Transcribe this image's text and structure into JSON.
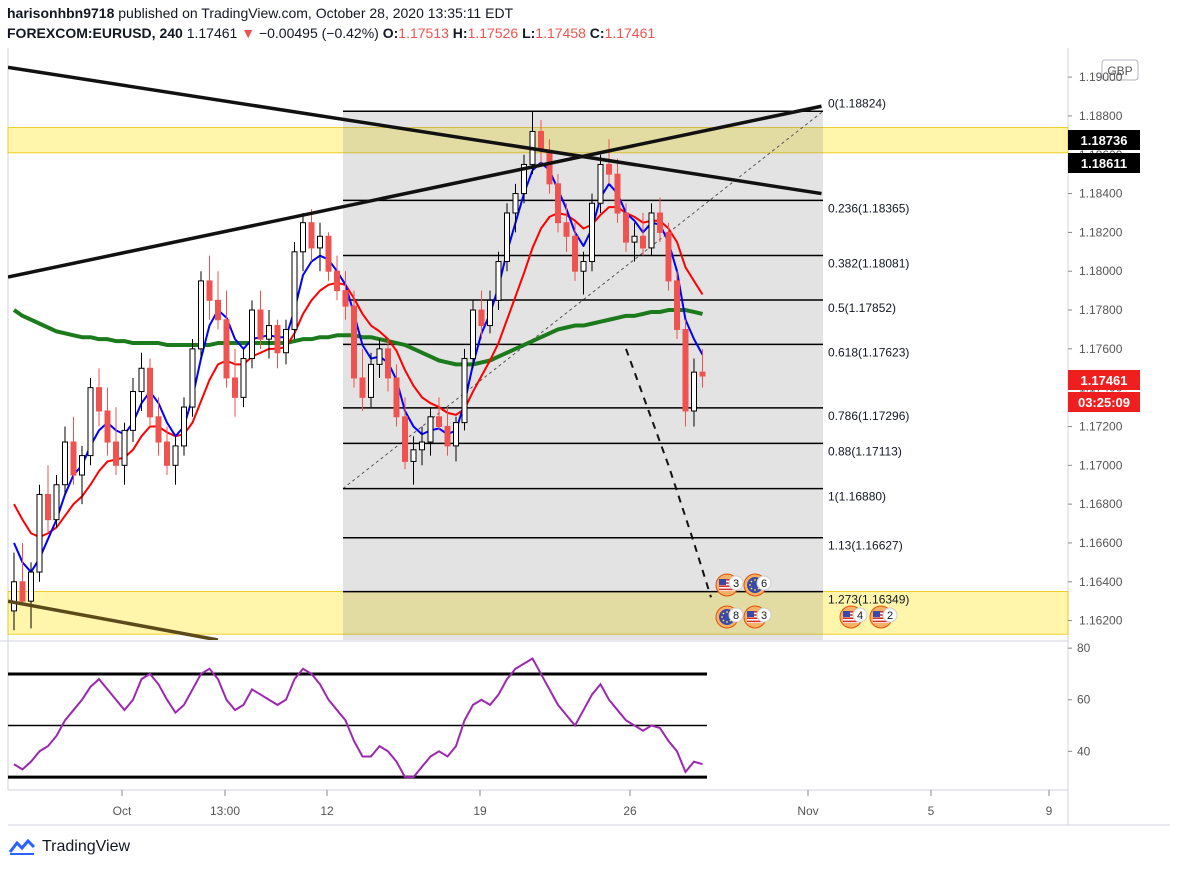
{
  "header": {
    "user": "harisonhbn9718",
    "published": "published on TradingView.com, October 28, 2020 13:35:11 EDT",
    "symbol": "FOREXCOM:EURUSD, 240",
    "last": "1.17461",
    "change_arrow": "▼",
    "change": "−0.00495 (−0.42%)",
    "o_label": "O:",
    "o_value": "1.17513",
    "h_label": "H:",
    "h_value": "1.17526",
    "l_label": "L:",
    "l_value": "1.17458",
    "c_label": "C:",
    "c_value": "1.17461"
  },
  "footer": {
    "brand": "TradingView",
    "logo_icon": "tradingview-logo-icon"
  },
  "colors": {
    "up": "#000000",
    "down": "#ef5350",
    "ema_fast": "#0000ff",
    "ema_mid": "#ff0000",
    "ema_slow": "#1b7a1b",
    "rsi": "#9c27b0",
    "zone": "#fff59d"
  },
  "chart_data": [
    {
      "type": "candlestick",
      "symbol": "FOREXCOM:EURUSD",
      "timeframe": "240",
      "currency": "GBP",
      "ylim": [
        1.161,
        1.1915
      ],
      "price_ticks": [
        "1.19000",
        "1.18800",
        "1.18600",
        "1.18400",
        "1.18200",
        "1.18000",
        "1.17800",
        "1.17600",
        "1.17400",
        "1.17200",
        "1.17000",
        "1.16800",
        "1.16600",
        "1.16400",
        "1.16200"
      ],
      "x_ticks": [
        "Oct",
        "13:00",
        "12",
        "19",
        "26",
        "Nov",
        "5",
        "9"
      ],
      "price_tags": [
        {
          "text": "1.18736",
          "value": 1.18736
        },
        {
          "text": "1.18611",
          "value": 1.18611
        },
        {
          "text": "1.17461",
          "value": 1.17461
        },
        {
          "text": "03:25:09",
          "value": 1.17296
        }
      ],
      "fib_levels": [
        {
          "label": "0(1.18824)",
          "value": 1.18824
        },
        {
          "label": "0.236(1.18365)",
          "value": 1.18365
        },
        {
          "label": "0.382(1.18081)",
          "value": 1.18081
        },
        {
          "label": "0.5(1.17852)",
          "value": 1.17852
        },
        {
          "label": "0.618(1.17623)",
          "value": 1.17623
        },
        {
          "label": "0.786(1.17296)",
          "value": 1.17296
        },
        {
          "label": "0.88(1.17113)",
          "value": 1.17113
        },
        {
          "label": "1(1.16880)",
          "value": 1.1688
        },
        {
          "label": "1.13(1.16627)",
          "value": 1.16627
        },
        {
          "label": "1.273(1.16349)",
          "value": 1.16349
        }
      ],
      "zones": [
        {
          "from": 1.1861,
          "to": 1.1874
        },
        {
          "from": 1.1613,
          "to": 1.1635
        }
      ],
      "events": [
        {
          "icon": "us-flag-icon",
          "count": "3"
        },
        {
          "icon": "eu-flag-icon",
          "count": "6"
        },
        {
          "icon": "eu-flag-icon",
          "count": "8"
        },
        {
          "icon": "us-flag-icon",
          "count": "3"
        },
        {
          "icon": "us-flag-icon",
          "count": "4"
        },
        {
          "icon": "us-flag-icon",
          "count": "2"
        }
      ],
      "ohlc": [
        [
          1.1625,
          1.1655,
          1.1615,
          1.164
        ],
        [
          1.164,
          1.166,
          1.1628,
          1.163
        ],
        [
          1.163,
          1.165,
          1.1616,
          1.1645
        ],
        [
          1.1645,
          1.169,
          1.164,
          1.1685
        ],
        [
          1.1685,
          1.17,
          1.1665,
          1.1672
        ],
        [
          1.1672,
          1.1695,
          1.1668,
          1.169
        ],
        [
          1.169,
          1.172,
          1.1685,
          1.1712
        ],
        [
          1.1712,
          1.1725,
          1.169,
          1.1695
        ],
        [
          1.1695,
          1.171,
          1.168,
          1.1705
        ],
        [
          1.1705,
          1.1745,
          1.17,
          1.174
        ],
        [
          1.174,
          1.175,
          1.172,
          1.1728
        ],
        [
          1.1728,
          1.174,
          1.1705,
          1.1712
        ],
        [
          1.1712,
          1.173,
          1.1695,
          1.17
        ],
        [
          1.17,
          1.1722,
          1.169,
          1.1718
        ],
        [
          1.1718,
          1.1745,
          1.1712,
          1.1738
        ],
        [
          1.1738,
          1.1758,
          1.1728,
          1.175
        ],
        [
          1.175,
          1.1755,
          1.172,
          1.1725
        ],
        [
          1.1725,
          1.1735,
          1.1705,
          1.1712
        ],
        [
          1.1712,
          1.172,
          1.1695,
          1.17
        ],
        [
          1.17,
          1.1715,
          1.169,
          1.171
        ],
        [
          1.171,
          1.1735,
          1.1705,
          1.173
        ],
        [
          1.173,
          1.1765,
          1.1725,
          1.176
        ],
        [
          1.176,
          1.18,
          1.1755,
          1.1795
        ],
        [
          1.1795,
          1.1808,
          1.1775,
          1.1785
        ],
        [
          1.1785,
          1.18,
          1.177,
          1.1775
        ],
        [
          1.1775,
          1.179,
          1.174,
          1.1745
        ],
        [
          1.1745,
          1.176,
          1.1725,
          1.1735
        ],
        [
          1.1735,
          1.176,
          1.173,
          1.1755
        ],
        [
          1.1755,
          1.1785,
          1.175,
          1.178
        ],
        [
          1.178,
          1.179,
          1.176,
          1.1765
        ],
        [
          1.1765,
          1.178,
          1.1755,
          1.1772
        ],
        [
          1.1772,
          1.1775,
          1.175,
          1.1758
        ],
        [
          1.1758,
          1.1775,
          1.1752,
          1.177
        ],
        [
          1.177,
          1.1815,
          1.1765,
          1.181
        ],
        [
          1.181,
          1.183,
          1.18,
          1.1825
        ],
        [
          1.1825,
          1.1832,
          1.1805,
          1.1812
        ],
        [
          1.1812,
          1.1825,
          1.18,
          1.1818
        ],
        [
          1.1818,
          1.182,
          1.1795,
          1.18
        ],
        [
          1.18,
          1.1808,
          1.1785,
          1.179
        ],
        [
          1.179,
          1.18,
          1.1775,
          1.1782
        ],
        [
          1.1782,
          1.179,
          1.174,
          1.1745
        ],
        [
          1.1745,
          1.176,
          1.1728,
          1.1735
        ],
        [
          1.1735,
          1.1758,
          1.173,
          1.1752
        ],
        [
          1.1752,
          1.1765,
          1.1745,
          1.176
        ],
        [
          1.176,
          1.1765,
          1.1738,
          1.1745
        ],
        [
          1.1745,
          1.1752,
          1.172,
          1.1725
        ],
        [
          1.1725,
          1.1735,
          1.1698,
          1.1702
        ],
        [
          1.1702,
          1.1715,
          1.169,
          1.1708
        ],
        [
          1.1708,
          1.172,
          1.17,
          1.1712
        ],
        [
          1.1712,
          1.173,
          1.1705,
          1.1725
        ],
        [
          1.1725,
          1.1735,
          1.1718,
          1.172
        ],
        [
          1.172,
          1.173,
          1.1705,
          1.171
        ],
        [
          1.171,
          1.1725,
          1.1702,
          1.1722
        ],
        [
          1.1722,
          1.176,
          1.1718,
          1.1755
        ],
        [
          1.1755,
          1.1785,
          1.175,
          1.178
        ],
        [
          1.178,
          1.179,
          1.1765,
          1.1772
        ],
        [
          1.1772,
          1.179,
          1.1768,
          1.1785
        ],
        [
          1.1785,
          1.181,
          1.178,
          1.1805
        ],
        [
          1.1805,
          1.1835,
          1.18,
          1.183
        ],
        [
          1.183,
          1.1845,
          1.182,
          1.184
        ],
        [
          1.184,
          1.186,
          1.1835,
          1.1855
        ],
        [
          1.1855,
          1.1882,
          1.185,
          1.1872
        ],
        [
          1.1872,
          1.1878,
          1.1855,
          1.1862
        ],
        [
          1.1862,
          1.1868,
          1.184,
          1.1845
        ],
        [
          1.1845,
          1.185,
          1.182,
          1.1825
        ],
        [
          1.1825,
          1.1835,
          1.181,
          1.1818
        ],
        [
          1.1818,
          1.1825,
          1.1795,
          1.18
        ],
        [
          1.18,
          1.181,
          1.1788,
          1.1805
        ],
        [
          1.1805,
          1.184,
          1.18,
          1.1835
        ],
        [
          1.1835,
          1.186,
          1.183,
          1.1855
        ],
        [
          1.1855,
          1.1868,
          1.1845,
          1.185
        ],
        [
          1.185,
          1.1858,
          1.1825,
          1.183
        ],
        [
          1.183,
          1.1835,
          1.181,
          1.1815
        ],
        [
          1.1815,
          1.1825,
          1.1805,
          1.1818
        ],
        [
          1.1818,
          1.183,
          1.1808,
          1.1812
        ],
        [
          1.1812,
          1.1835,
          1.1808,
          1.183
        ],
        [
          1.183,
          1.1838,
          1.1815,
          1.182
        ],
        [
          1.182,
          1.1825,
          1.179,
          1.1795
        ],
        [
          1.1795,
          1.18,
          1.1765,
          1.177
        ],
        [
          1.177,
          1.1775,
          1.172,
          1.1728
        ],
        [
          1.1728,
          1.1755,
          1.172,
          1.1748
        ],
        [
          1.1748,
          1.176,
          1.174,
          1.1746
        ]
      ],
      "ema_fast": [
        1.166,
        1.165,
        1.1645,
        1.1652,
        1.1662,
        1.1672,
        1.1685,
        1.1695,
        1.17,
        1.171,
        1.1718,
        1.1722,
        1.1718,
        1.1716,
        1.1722,
        1.1732,
        1.1738,
        1.1732,
        1.1722,
        1.1715,
        1.172,
        1.1735,
        1.1755,
        1.1772,
        1.178,
        1.1776,
        1.1765,
        1.176,
        1.1765,
        1.1766,
        1.1767,
        1.1766,
        1.1766,
        1.178,
        1.1798,
        1.1805,
        1.1808,
        1.1806,
        1.18,
        1.1793,
        1.1778,
        1.1762,
        1.1755,
        1.1756,
        1.1753,
        1.1744,
        1.1728,
        1.172,
        1.1716,
        1.1718,
        1.1719,
        1.1716,
        1.1718,
        1.1732,
        1.1752,
        1.1768,
        1.1778,
        1.1792,
        1.181,
        1.1825,
        1.184,
        1.1852,
        1.1856,
        1.1852,
        1.1842,
        1.1832,
        1.182,
        1.1813,
        1.1822,
        1.1838,
        1.1845,
        1.184,
        1.183,
        1.1826,
        1.182,
        1.1825,
        1.1824,
        1.1815,
        1.18,
        1.1775,
        1.1765,
        1.1757
      ],
      "ema_mid": [
        1.168,
        1.1672,
        1.1665,
        1.1663,
        1.1665,
        1.1668,
        1.1674,
        1.168,
        1.1684,
        1.169,
        1.1697,
        1.1702,
        1.1703,
        1.1704,
        1.1708,
        1.1715,
        1.172,
        1.172,
        1.1717,
        1.1715,
        1.1716,
        1.1722,
        1.1733,
        1.1744,
        1.1752,
        1.1754,
        1.1752,
        1.1752,
        1.1756,
        1.1758,
        1.176,
        1.176,
        1.1761,
        1.1768,
        1.1778,
        1.1785,
        1.179,
        1.1793,
        1.1794,
        1.1793,
        1.1786,
        1.1778,
        1.1772,
        1.1769,
        1.1765,
        1.1759,
        1.1749,
        1.1741,
        1.1735,
        1.1732,
        1.173,
        1.1727,
        1.1726,
        1.1729,
        1.1738,
        1.1746,
        1.1754,
        1.1763,
        1.1775,
        1.1787,
        1.1799,
        1.1812,
        1.1822,
        1.1828,
        1.183,
        1.1829,
        1.1826,
        1.1822,
        1.1824,
        1.1829,
        1.1833,
        1.1833,
        1.183,
        1.1828,
        1.1825,
        1.1826,
        1.1826,
        1.1822,
        1.1815,
        1.1802,
        1.1795,
        1.1788
      ],
      "ema_slow": [
        1.178,
        1.1777,
        1.1775,
        1.1773,
        1.1771,
        1.1769,
        1.1768,
        1.1767,
        1.1766,
        1.1766,
        1.1765,
        1.1765,
        1.1764,
        1.1764,
        1.1763,
        1.1763,
        1.1763,
        1.1763,
        1.1762,
        1.1762,
        1.1762,
        1.1762,
        1.1762,
        1.1762,
        1.1763,
        1.1763,
        1.1763,
        1.1763,
        1.1763,
        1.1763,
        1.1763,
        1.1763,
        1.1763,
        1.1764,
        1.1765,
        1.1765,
        1.1766,
        1.1766,
        1.1767,
        1.1767,
        1.1767,
        1.1766,
        1.1766,
        1.1765,
        1.1764,
        1.1763,
        1.1762,
        1.176,
        1.1758,
        1.1756,
        1.1754,
        1.1753,
        1.1752,
        1.1752,
        1.1752,
        1.1753,
        1.1754,
        1.1756,
        1.1758,
        1.176,
        1.1762,
        1.1764,
        1.1766,
        1.1768,
        1.177,
        1.1771,
        1.1772,
        1.1772,
        1.1773,
        1.1774,
        1.1775,
        1.1776,
        1.1777,
        1.1777,
        1.1778,
        1.1779,
        1.1779,
        1.178,
        1.178,
        1.178,
        1.1779,
        1.1778
      ],
      "trendlines": [
        {
          "name": "descending-trendline",
          "from": [
            0,
            1.1905
          ],
          "to": [
            95,
            1.184
          ]
        },
        {
          "name": "ascending-trendline",
          "from": [
            0,
            1.1797
          ],
          "to": [
            95,
            1.1885
          ]
        },
        {
          "name": "lower-trendline",
          "from": [
            0,
            1.163
          ],
          "to": [
            24,
            1.161
          ]
        }
      ],
      "projection": [
        [
          72,
          1.176
        ],
        [
          77,
          1.17
        ],
        [
          80,
          1.166
        ],
        [
          82,
          1.1632
        ]
      ]
    },
    {
      "type": "line",
      "indicator": "RSI",
      "ylim": [
        25,
        82
      ],
      "ticks": [
        80,
        60,
        40
      ],
      "bands": [
        70,
        50,
        30
      ],
      "values": [
        35,
        33,
        36,
        40,
        42,
        46,
        52,
        56,
        60,
        65,
        68,
        64,
        60,
        56,
        60,
        68,
        70,
        66,
        60,
        55,
        58,
        64,
        70,
        72,
        68,
        60,
        56,
        58,
        64,
        62,
        60,
        58,
        60,
        68,
        72,
        70,
        66,
        60,
        56,
        52,
        44,
        38,
        38,
        42,
        40,
        36,
        30,
        30,
        34,
        38,
        40,
        38,
        42,
        52,
        58,
        60,
        58,
        62,
        68,
        72,
        74,
        76,
        70,
        64,
        58,
        54,
        50,
        56,
        62,
        66,
        60,
        56,
        52,
        50,
        48,
        50,
        49,
        44,
        40,
        32,
        36,
        35
      ]
    }
  ]
}
